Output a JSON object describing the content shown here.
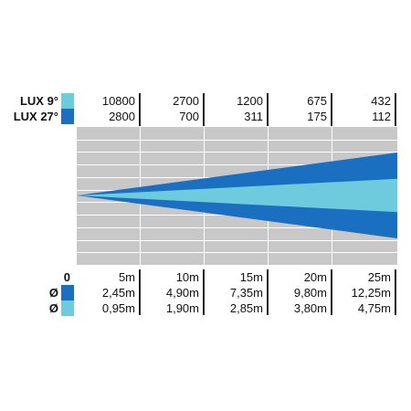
{
  "legend": {
    "lux_9_label": "LUX 9°",
    "lux_27_label": "LUX 27°",
    "zero_label": "0",
    "diam_symbol_1": "Ø",
    "diam_symbol_2": "Ø"
  },
  "colors": {
    "light_cyan": "#6ecbde",
    "dark_blue": "#1a6fc0",
    "grid_gray": "#c8c8c8",
    "grid_lines": "#ffffff"
  },
  "table": {
    "lux_9": [
      "10800",
      "2700",
      "1200",
      "675",
      "432"
    ],
    "lux_27": [
      "2800",
      "700",
      "311",
      "175",
      "112"
    ],
    "distance": [
      "5m",
      "10m",
      "15m",
      "20m",
      "25m"
    ],
    "diameter_27": [
      "2,45m",
      "4,90m",
      "7,35m",
      "9,80m",
      "12,25m"
    ],
    "diameter_9": [
      "0,95m",
      "1,90m",
      "2,85m",
      "3,80m",
      "4,75m"
    ]
  },
  "beam": {
    "max_distance_m": 25,
    "outer_diameter_m": 12.25,
    "inner_diameter_m": 4.75
  }
}
